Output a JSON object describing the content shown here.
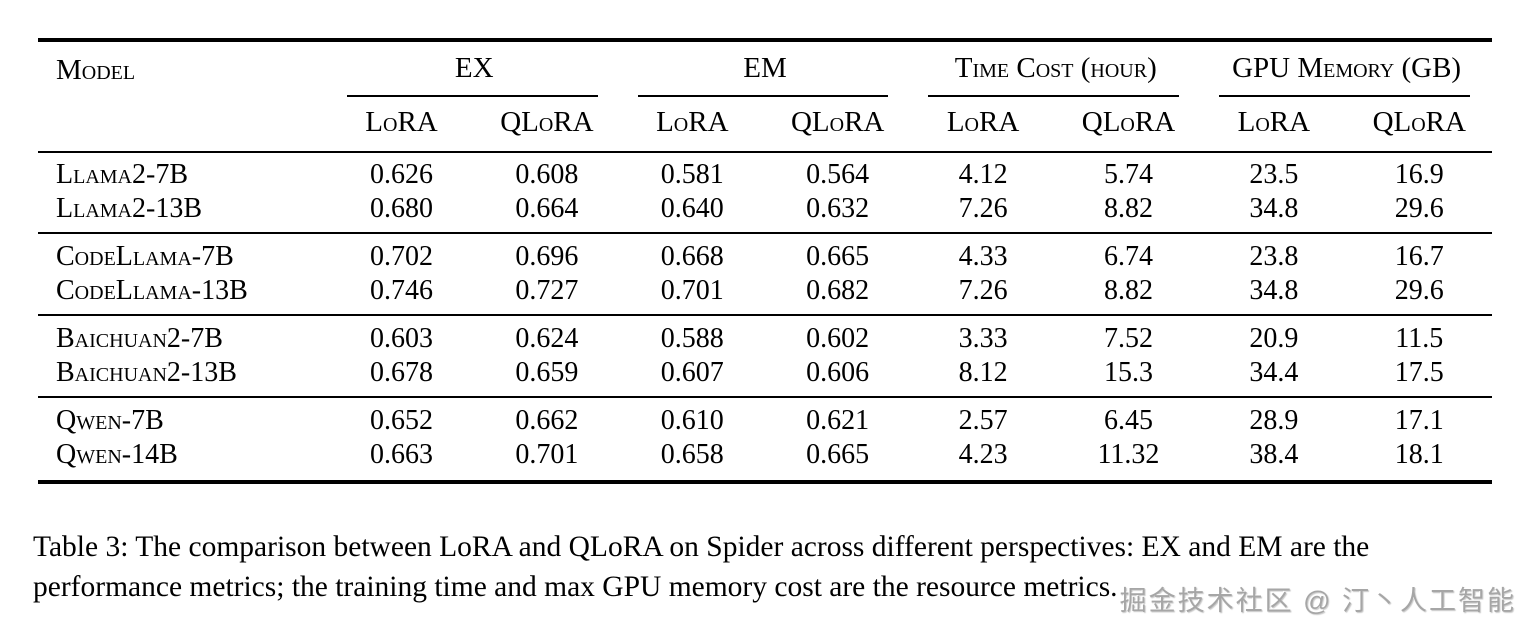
{
  "table": {
    "model_header": "Model",
    "top_groups": [
      {
        "label": "EX"
      },
      {
        "label": "EM"
      },
      {
        "label": "Time Cost (hour)"
      },
      {
        "label": "GPU Memory (GB)"
      }
    ],
    "sub_headers": [
      "LoRA",
      "QLoRA"
    ],
    "groups": [
      {
        "rows": [
          {
            "model": "Llama2-7B",
            "values": [
              "0.626",
              "0.608",
              "0.581",
              "0.564",
              "4.12",
              "5.74",
              "23.5",
              "16.9"
            ]
          },
          {
            "model": "Llama2-13B",
            "values": [
              "0.680",
              "0.664",
              "0.640",
              "0.632",
              "7.26",
              "8.82",
              "34.8",
              "29.6"
            ]
          }
        ]
      },
      {
        "rows": [
          {
            "model": "CodeLlama-7B",
            "values": [
              "0.702",
              "0.696",
              "0.668",
              "0.665",
              "4.33",
              "6.74",
              "23.8",
              "16.7"
            ]
          },
          {
            "model": "CodeLlama-13B",
            "values": [
              "0.746",
              "0.727",
              "0.701",
              "0.682",
              "7.26",
              "8.82",
              "34.8",
              "29.6"
            ]
          }
        ]
      },
      {
        "rows": [
          {
            "model": "Baichuan2-7B",
            "values": [
              "0.603",
              "0.624",
              "0.588",
              "0.602",
              "3.33",
              "7.52",
              "20.9",
              "11.5"
            ]
          },
          {
            "model": "Baichuan2-13B",
            "values": [
              "0.678",
              "0.659",
              "0.607",
              "0.606",
              "8.12",
              "15.3",
              "34.4",
              "17.5"
            ]
          }
        ]
      },
      {
        "rows": [
          {
            "model": "Qwen-7B",
            "values": [
              "0.652",
              "0.662",
              "0.610",
              "0.621",
              "2.57",
              "6.45",
              "28.9",
              "17.1"
            ]
          },
          {
            "model": "Qwen-14B",
            "values": [
              "0.663",
              "0.701",
              "0.658",
              "0.665",
              "4.23",
              "11.32",
              "38.4",
              "18.1"
            ]
          }
        ]
      }
    ]
  },
  "caption": "Table 3: The comparison between LoRA and QLoRA on Spider across different perspectives: EX and EM are the performance metrics; the training time and max GPU memory cost are the resource metrics.",
  "watermark": "掘金技术社区 @ 汀丶人工智能",
  "colors": {
    "text": "#000000",
    "background": "#ffffff",
    "rule": "#000000",
    "watermark": "#a6a6a6"
  }
}
